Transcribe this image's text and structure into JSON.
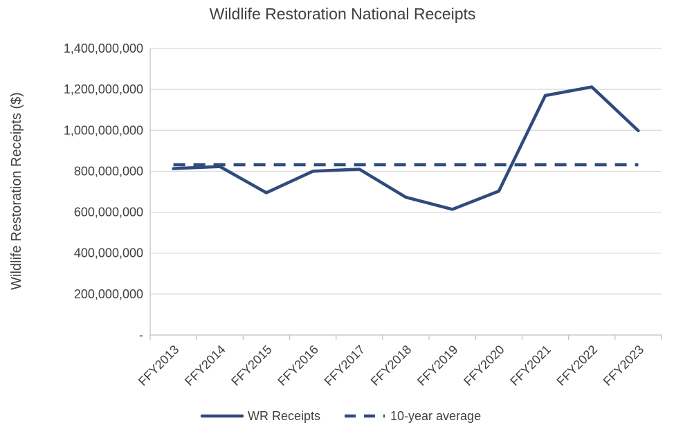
{
  "chart_data": {
    "type": "line",
    "title": "Wildlife Restoration National Receipts",
    "xlabel": "",
    "ylabel": "Wildlife Restoration Receipts ($)",
    "categories": [
      "FFY2013",
      "FFY2014",
      "FFY2015",
      "FFY2016",
      "FFY2017",
      "FFY2018",
      "FFY2019",
      "FFY2020",
      "FFY2021",
      "FFY2022",
      "FFY2023"
    ],
    "ylim": [
      0,
      1400000000
    ],
    "yticks": [
      0,
      200000000,
      400000000,
      600000000,
      800000000,
      1000000000,
      1200000000,
      1400000000
    ],
    "ytick_labels": [
      "-",
      "200,000,000",
      "400,000,000",
      "600,000,000",
      "800,000,000",
      "1,000,000,000",
      "1,200,000,000",
      "1,400,000,000"
    ],
    "grid": true,
    "legend_position": "bottom",
    "series": [
      {
        "name": "WR Receipts",
        "style": "solid",
        "color": "#2f4b7c",
        "values": [
          813000000,
          823000000,
          695000000,
          800000000,
          810000000,
          673000000,
          614000000,
          703000000,
          1170000000,
          1212000000,
          998000000
        ]
      },
      {
        "name": "10-year average",
        "style": "dashed",
        "color": "#2f4b7c",
        "values": [
          832000000,
          832000000,
          832000000,
          832000000,
          832000000,
          832000000,
          832000000,
          832000000,
          832000000,
          832000000,
          832000000
        ]
      }
    ]
  }
}
